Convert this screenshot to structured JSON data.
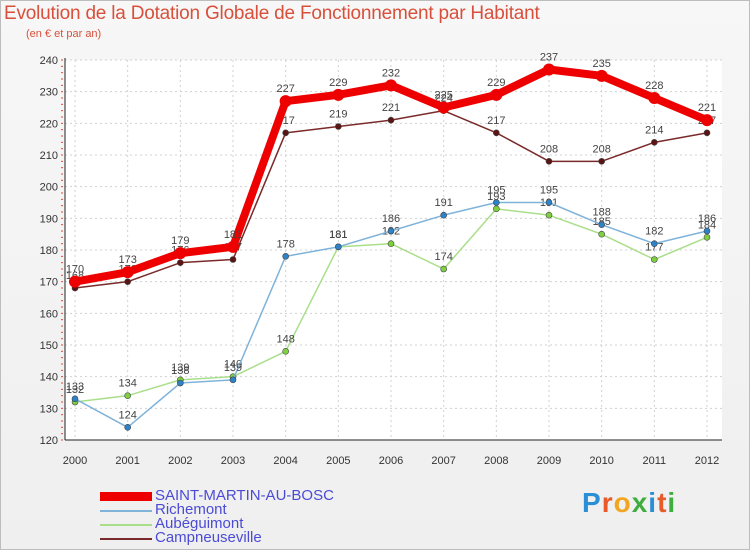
{
  "title": "Evolution de la Dotation Globale de Fonctionnement par Habitant",
  "subtitle": "(en € et par an)",
  "brand": {
    "text": "Proxiti",
    "letters": [
      "P",
      "r",
      "o",
      "x",
      "i",
      "t",
      "i"
    ],
    "colors": [
      "#2a8fd6",
      "#e85a2a",
      "#f2a51f",
      "#3fae3f",
      "#2a8fd6",
      "#e85a2a",
      "#3fae3f"
    ]
  },
  "chart_data": {
    "type": "line",
    "title": "Evolution de la Dotation Globale de Fonctionnement par Habitant",
    "subtitle": "(en € et par an)",
    "xlabel": "",
    "ylabel": "",
    "categories": [
      "2000",
      "2001",
      "2002",
      "2003",
      "2004",
      "2005",
      "2006",
      "2007",
      "2008",
      "2009",
      "2010",
      "2011",
      "2012"
    ],
    "ylim": [
      120,
      240
    ],
    "yticks": [
      120,
      130,
      140,
      150,
      160,
      170,
      180,
      190,
      200,
      210,
      220,
      230,
      240
    ],
    "grid": true,
    "legend_position": "bottom-left",
    "series": [
      {
        "name": "Campneuseville",
        "color": "#7a2a2a",
        "marker": "#5a1414",
        "values": [
          168,
          170,
          176,
          177,
          217,
          219,
          221,
          224,
          217,
          208,
          208,
          214,
          217
        ]
      },
      {
        "name": "Aubéguimont",
        "color": "#a9de8a",
        "marker": "#7fd040",
        "values": [
          132,
          134,
          139,
          140,
          148,
          181,
          182,
          174,
          193,
          191,
          185,
          177,
          184
        ]
      },
      {
        "name": "Richemont",
        "color": "#7fb3d9",
        "marker": "#2d82c8",
        "values": [
          133,
          124,
          138,
          139,
          178,
          181,
          186,
          191,
          195,
          195,
          188,
          182,
          186
        ]
      },
      {
        "name": "SAINT-MARTIN-AU-BOSC",
        "color": "#ee0000",
        "marker": "#ee0000",
        "values": [
          170,
          173,
          179,
          181,
          227,
          229,
          232,
          225,
          229,
          237,
          235,
          228,
          221
        ]
      }
    ],
    "legend_order": [
      "SAINT-MARTIN-AU-BOSC",
      "Richemont",
      "Aubéguimont",
      "Campneuseville"
    ]
  }
}
